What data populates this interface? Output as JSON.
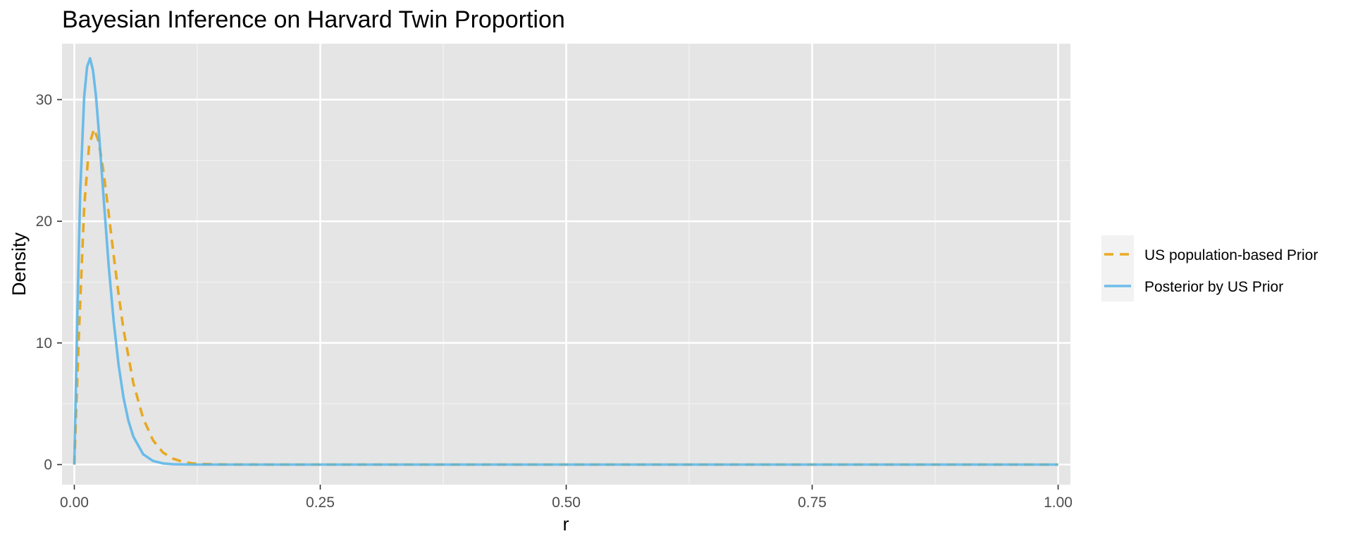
{
  "chart_data": {
    "type": "line",
    "title": "Bayesian Inference on Harvard Twin Proportion",
    "xlabel": "r",
    "ylabel": "Density",
    "xlim": [
      -0.0125,
      1.0125
    ],
    "ylim": [
      -1.65,
      34.6
    ],
    "x_ticks": [
      0.0,
      0.25,
      0.5,
      0.75,
      1.0
    ],
    "x_tick_labels": [
      "0.00",
      "0.25",
      "0.50",
      "0.75",
      "1.00"
    ],
    "y_ticks": [
      0,
      10,
      20,
      30
    ],
    "y_tick_labels": [
      "0",
      "10",
      "20",
      "30"
    ],
    "grid": true,
    "legend_position": "right",
    "series": [
      {
        "name": "US population-based Prior",
        "color": "#E69F00",
        "line_style": "dashed",
        "x": [
          0.0,
          0.005,
          0.01,
          0.015,
          0.02,
          0.025,
          0.03,
          0.035,
          0.04,
          0.045,
          0.05,
          0.06,
          0.07,
          0.08,
          0.09,
          0.1,
          0.11,
          0.12,
          0.13,
          0.15,
          0.2,
          0.3,
          0.4,
          0.5,
          0.6,
          0.7,
          0.8,
          0.9,
          1.0
        ],
        "y": [
          0.0,
          11.4,
          21.1,
          26.2,
          27.6,
          26.5,
          23.9,
          20.6,
          17.2,
          14.0,
          11.1,
          6.7,
          3.8,
          2.0,
          1.0,
          0.5,
          0.23,
          0.1,
          0.05,
          0.01,
          0.0,
          0.0,
          0.0,
          0.0,
          0.0,
          0.0,
          0.0,
          0.0,
          0.0
        ]
      },
      {
        "name": "Posterior by US Prior",
        "color": "#56B4E9",
        "line_style": "solid",
        "x": [
          0.0,
          0.003,
          0.006,
          0.01,
          0.013,
          0.016,
          0.019,
          0.022,
          0.025,
          0.03,
          0.035,
          0.04,
          0.045,
          0.05,
          0.055,
          0.06,
          0.07,
          0.08,
          0.09,
          0.1,
          0.12,
          0.15,
          0.2,
          0.3,
          0.5,
          0.7,
          0.9,
          1.0
        ],
        "y": [
          0.0,
          12.0,
          22.4,
          30.2,
          32.7,
          33.4,
          32.4,
          30.3,
          27.3,
          21.7,
          16.3,
          11.8,
          8.2,
          5.5,
          3.6,
          2.3,
          0.85,
          0.3,
          0.1,
          0.03,
          0.0,
          0.0,
          0.0,
          0.0,
          0.0,
          0.0,
          0.0,
          0.0
        ]
      }
    ]
  }
}
